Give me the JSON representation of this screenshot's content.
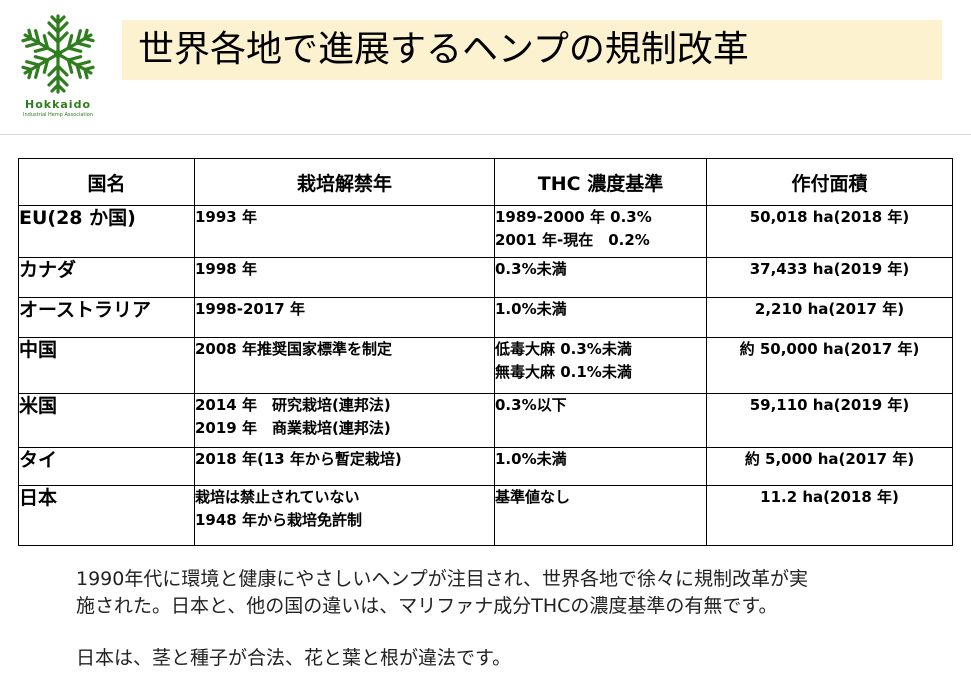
{
  "logo": {
    "name": "Hokkaido",
    "subtitle": "Industrial Hemp Association",
    "color": "#2f7d1f"
  },
  "title": "世界各地で進展するヘンプの規制改革",
  "table": {
    "headers": [
      "国名",
      "栽培解禁年",
      "THC 濃度基準",
      "作付面積"
    ],
    "rows": [
      {
        "country": "EU(28 か国)",
        "year": [
          "1993 年"
        ],
        "thc": [
          "1989-2000 年 0.3%",
          "2001 年-現在　0.2%"
        ],
        "area": "50,018 ha(2018 年)"
      },
      {
        "country": "カナダ",
        "year": [
          "1998 年"
        ],
        "thc": [
          "0.3%未満"
        ],
        "area": "37,433 ha(2019 年)"
      },
      {
        "country": "オーストラリア",
        "year": [
          "1998-2017 年"
        ],
        "thc": [
          "1.0%未満"
        ],
        "area": "2,210 ha(2017 年)"
      },
      {
        "country": "中国",
        "year": [
          "2008 年推奨国家標準を制定"
        ],
        "thc": [
          "低毒大麻 0.3%未満",
          "無毒大麻 0.1%未満"
        ],
        "area": "約 50,000 ha(2017 年)"
      },
      {
        "country": "米国",
        "year": [
          "2014 年　研究栽培(連邦法)",
          "2019 年　商業栽培(連邦法)"
        ],
        "thc": [
          "0.3%以下"
        ],
        "area": "59,110 ha(2019 年)"
      },
      {
        "country": "タイ",
        "year": [
          "2018 年(13 年から暫定栽培)"
        ],
        "thc": [
          "1.0%未満"
        ],
        "area": "約 5,000 ha(2017 年)"
      },
      {
        "country": "日本",
        "year": [
          "栽培は禁止されていない",
          "1948 年から栽培免許制"
        ],
        "thc": [
          "基準値なし"
        ],
        "area": "11.2 ha(2018 年)"
      }
    ]
  },
  "body": {
    "paragraph1_line1": "1990年代に環境と健康にやさしいヘンプが注目され、世界各地で徐々に規制改革が実",
    "paragraph1_line2": "施された。日本と、他の国の違いは、マリファナ成分THCの濃度基準の有無です。",
    "paragraph2": "日本は、茎と種子が合法、花と葉と根が違法です。"
  }
}
